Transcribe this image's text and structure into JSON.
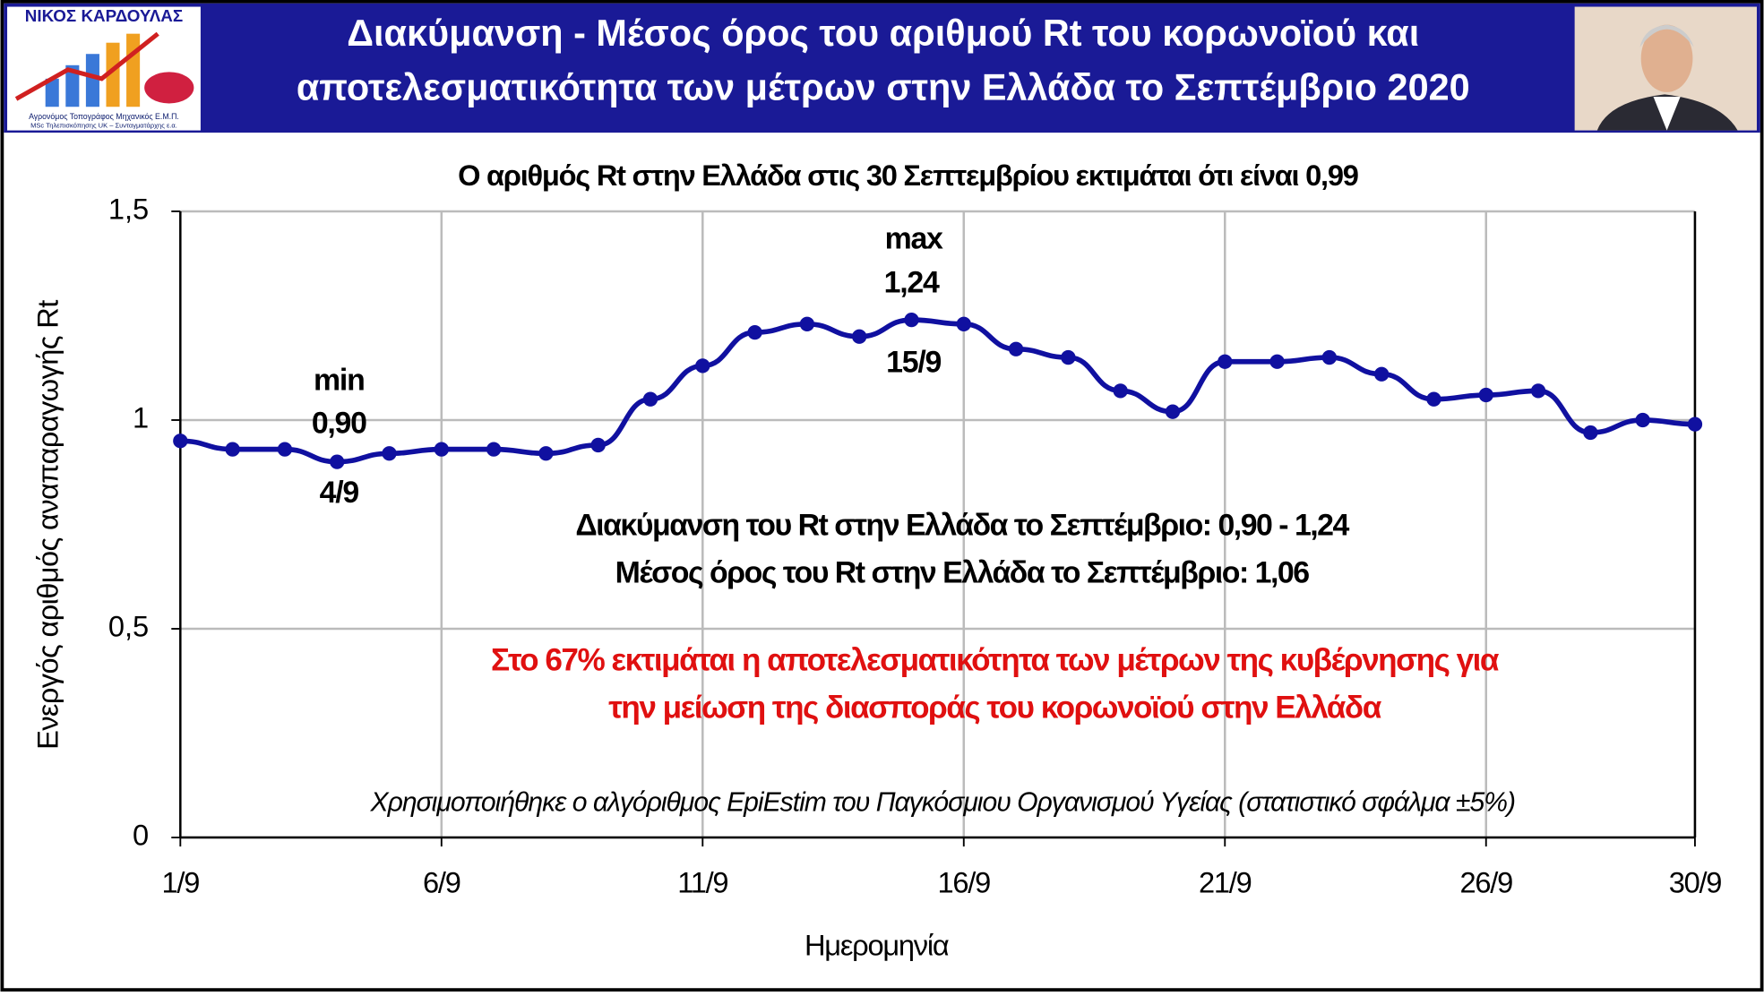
{
  "header": {
    "author": "ΝΙΚΟΣ ΚΑΡΔΟΥΛΑΣ",
    "author_lines": [
      "Αγρονόμος Τοπογράφος Μηχανικός Ε.Μ.Π.",
      "MSc Τηλεπισκόπησης UK – Συνταγματάρχης ε.α."
    ],
    "title_lines": [
      "Διακύμανση - Μέσος όρος του αριθμού Rt του κορωνοϊού και",
      "αποτελεσματικότητα των μέτρων στην Ελλάδα το Σεπτέμβριο 2020"
    ]
  },
  "chart_data": {
    "type": "line",
    "title": "Ο αριθμός Rt στην Ελλάδα στις 30 Σεπτεμβρίου εκτιμάται ότι είναι 0,99",
    "x_label": "Ημερομηνία",
    "y_label": "Ενεργός αριθμός αναπαραγωγής Rt",
    "categories": [
      "1/9",
      null,
      null,
      null,
      null,
      "6/9",
      null,
      null,
      null,
      null,
      "11/9",
      null,
      null,
      null,
      null,
      "16/9",
      null,
      null,
      null,
      null,
      "21/9",
      null,
      null,
      null,
      null,
      "26/9",
      null,
      null,
      null,
      "30/9"
    ],
    "values": [
      0.95,
      0.93,
      0.93,
      0.9,
      0.92,
      0.93,
      0.93,
      0.92,
      0.94,
      1.05,
      1.13,
      1.21,
      1.23,
      1.2,
      1.24,
      1.23,
      1.17,
      1.15,
      1.07,
      1.02,
      1.14,
      1.14,
      1.15,
      1.11,
      1.05,
      1.06,
      1.07,
      0.97,
      1.0,
      0.99
    ],
    "color": "#1010a0",
    "ylim": [
      0,
      1.5
    ],
    "yticks": [
      0,
      {
        "value": 0.5,
        "label": "0,5"
      },
      1,
      {
        "value": 1.5,
        "label": "1,5"
      }
    ],
    "grid": true,
    "annotations": [
      "min",
      "0,90",
      "4/9",
      "max",
      "1,24",
      "15/9"
    ],
    "notes": [
      "Διακύμανση του Rt στην Ελλάδα το Σεπτέμβριο: 0,90 -  1,24",
      "Μέσος όρος του Rt στην Ελλάδα το Σεπτέμβριο: 1,06"
    ],
    "highlight": [
      "Στο 67% εκτιμάται η αποτελεσματικότητα των μέτρων της κυβέρνησης για",
      "την μείωση της διασποράς του κορωνοϊού στην Ελλάδα"
    ],
    "footnote": "Χρησιμοποιήθηκε ο αλγόριθμος EpiEstim του Παγκόσμιου Οργανισμού Υγείας (στατιστικό σφάλμα ±5%)"
  }
}
